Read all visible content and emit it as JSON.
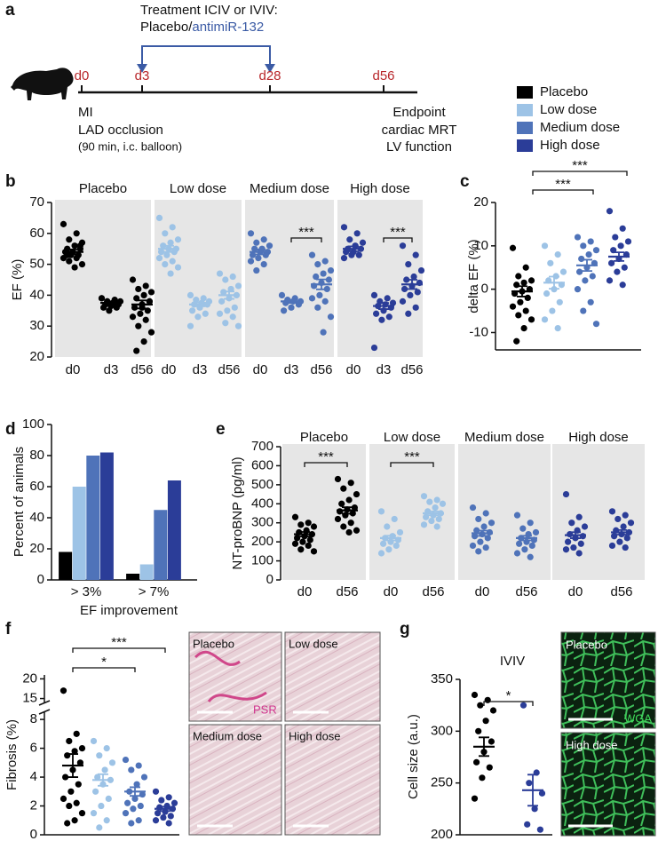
{
  "panel_labels": [
    "a",
    "b",
    "c",
    "d",
    "e",
    "f",
    "g"
  ],
  "timeline": {
    "treatment": "Treatment ICIV or IVIV:",
    "drug_a": "Placebo/",
    "drug_b": "antimiR-132",
    "days": [
      "d0",
      "d3",
      "d28",
      "d56"
    ],
    "start_notes": [
      "MI",
      "LAD occlusion",
      "(90 min, i.c. balloon)"
    ],
    "end_notes": [
      "Endpoint",
      "cardiac MRT",
      "LV function"
    ]
  },
  "legend": [
    {
      "name": "Placebo",
      "color": "#000000"
    },
    {
      "name": "Low dose",
      "color": "#9dc3e6"
    },
    {
      "name": "Medium dose",
      "color": "#4f73b9"
    },
    {
      "name": "High dose",
      "color": "#2b3d98"
    }
  ],
  "images": {
    "fibrosis": [
      "Placebo",
      "Low dose",
      "Medium dose",
      "High dose"
    ],
    "fibrosis_stain": "PSR",
    "cells": [
      "Placebo",
      "High dose"
    ],
    "cells_stain": "WGA"
  },
  "chart_data": [
    {
      "type": "strip",
      "ylabel": "EF (%)",
      "ylim": [
        20,
        70
      ],
      "yticks": [
        20,
        30,
        40,
        50,
        60,
        70
      ],
      "groups": [
        {
          "name": "Placebo",
          "color": "#000000",
          "categories": [
            "d0",
            "d3",
            "d56"
          ],
          "points": [
            [
              63,
              60,
              58,
              57,
              56,
              55,
              55,
              54,
              54,
              53,
              53,
              52,
              52,
              51,
              50,
              49,
              53,
              56
            ],
            [
              39,
              38.5,
              38,
              38,
              37.5,
              37,
              37,
              36.5,
              36,
              36,
              35,
              39,
              37.5,
              38
            ],
            [
              45,
              43,
              42,
              41,
              40,
              39,
              38,
              37,
              36,
              35,
              34,
              33,
              32,
              30,
              28,
              25,
              22,
              38,
              36
            ]
          ],
          "means": [
            54,
            37.5,
            37
          ],
          "sem": [
            0.8,
            0.3,
            1.3
          ]
        },
        {
          "name": "Low dose",
          "color": "#9dc3e6",
          "categories": [
            "d0",
            "d3",
            "d56"
          ],
          "points": [
            [
              65,
              62,
              60,
              58,
              57,
              56,
              55,
              55,
              54,
              54,
              53,
              52,
              51,
              50,
              49,
              47
            ],
            [
              40,
              39,
              38.5,
              38,
              37.5,
              37,
              37,
              36,
              35,
              34,
              33,
              30
            ],
            [
              47,
              46,
              45,
              43,
              42,
              41,
              40,
              39,
              38,
              36,
              35,
              34,
              33,
              31,
              30
            ]
          ],
          "means": [
            55,
            37,
            40
          ],
          "sem": [
            1,
            0.6,
            1.2
          ]
        },
        {
          "name": "Medium dose",
          "color": "#4f73b9",
          "categories": [
            "d0",
            "d3",
            "d56"
          ],
          "points": [
            [
              60,
              58,
              57,
              56,
              55,
              55,
              54,
              54,
              53,
              53,
              52,
              51,
              50,
              48
            ],
            [
              40,
              39,
              38.5,
              38,
              38,
              37.5,
              37,
              36,
              35
            ],
            [
              53,
              51,
              50,
              48,
              47,
              46,
              45,
              44,
              43,
              42,
              40,
              39,
              38,
              36,
              33,
              28
            ]
          ],
          "means": [
            54,
            38,
            43.5
          ],
          "sem": [
            0.8,
            0.5,
            1.6
          ]
        },
        {
          "name": "High dose",
          "color": "#2b3d98",
          "categories": [
            "d0",
            "d3",
            "d56"
          ],
          "points": [
            [
              62,
              60,
              58,
              57,
              56,
              55,
              55,
              54,
              54,
              53,
              53,
              52
            ],
            [
              40,
              39,
              38,
              37.5,
              37,
              36.5,
              36,
              35,
              34,
              33,
              32,
              23
            ],
            [
              56,
              53,
              50,
              48,
              46,
              45,
              44,
              43,
              42,
              41,
              40,
              38,
              36,
              34
            ]
          ],
          "means": [
            55,
            36.5,
            43.5
          ],
          "sem": [
            0.8,
            1,
            1.5
          ]
        }
      ],
      "annotations": [
        {
          "text": "***"
        },
        {
          "text": "***"
        }
      ]
    },
    {
      "type": "strip",
      "ylabel": "delta EF (%)",
      "ylim": [
        -14,
        20
      ],
      "yticks": [
        -10,
        0,
        10,
        20
      ],
      "groups": [
        {
          "color": "#000000",
          "points": [
            [
              9.5,
              5,
              3,
              2,
              1.5,
              1,
              0,
              -0.5,
              -1,
              -2,
              -3,
              -4,
              -5,
              -6,
              -7,
              -9,
              -12
            ]
          ],
          "means": [
            -0.5
          ],
          "sem": [
            1.2
          ]
        },
        {
          "color": "#9dc3e6",
          "points": [
            [
              10,
              8,
              6,
              4,
              3,
              2,
              1,
              0,
              -1,
              -3,
              -5,
              -7,
              -9
            ]
          ],
          "means": [
            1.5
          ],
          "sem": [
            1.4
          ]
        },
        {
          "color": "#4f73b9",
          "points": [
            [
              12,
              11,
              10,
              9,
              8,
              7,
              6,
              5,
              4,
              3,
              2,
              0,
              -3,
              -5,
              -8
            ]
          ],
          "means": [
            5.5
          ],
          "sem": [
            1.3
          ]
        },
        {
          "color": "#2b3d98",
          "points": [
            [
              18,
              14,
              12,
              11,
              10,
              9,
              8,
              7,
              6,
              5,
              4,
              2,
              1
            ]
          ],
          "means": [
            7.5
          ],
          "sem": [
            1
          ]
        }
      ],
      "annotations": [
        {
          "text": "***"
        },
        {
          "text": "***"
        }
      ]
    },
    {
      "type": "bar",
      "ylabel": "Percent of animals",
      "xlabel": "EF improvement",
      "categories": [
        "> 3%",
        "> 7%"
      ],
      "ylim": [
        0,
        100
      ],
      "yticks": [
        0,
        20,
        40,
        60,
        80,
        100
      ],
      "series": [
        {
          "color": "#000000",
          "values": [
            18,
            4
          ]
        },
        {
          "color": "#9dc3e6",
          "values": [
            60,
            10
          ]
        },
        {
          "color": "#4f73b9",
          "values": [
            80,
            45
          ]
        },
        {
          "color": "#2b3d98",
          "values": [
            82,
            64
          ]
        }
      ]
    },
    {
      "type": "strip",
      "ylabel": "NT-proBNP (pg/ml)",
      "ylim": [
        0,
        700
      ],
      "yticks": [
        0,
        100,
        200,
        300,
        400,
        500,
        600,
        700
      ],
      "groups": [
        {
          "name": "Placebo",
          "color": "#000000",
          "categories": [
            "d0",
            "d56"
          ],
          "points": [
            [
              330,
              300,
              290,
              280,
              260,
              250,
              240,
              230,
              220,
              210,
              200,
              190,
              180,
              160,
              150
            ],
            [
              530,
              510,
              480,
              450,
              420,
              400,
              380,
              370,
              360,
              350,
              340,
              320,
              300,
              280,
              260,
              250
            ]
          ],
          "means": [
            240,
            365
          ],
          "sem": [
            12,
            17
          ]
        },
        {
          "name": "Low dose",
          "color": "#9dc3e6",
          "categories": [
            "d0",
            "d56"
          ],
          "points": [
            [
              360,
              320,
              280,
              250,
              230,
              220,
              210,
              200,
              190,
              180,
              160,
              140
            ],
            [
              440,
              420,
              410,
              400,
              380,
              360,
              350,
              340,
              330,
              320,
              310,
              290,
              280
            ]
          ],
          "means": [
            220,
            350
          ],
          "sem": [
            12,
            10
          ]
        },
        {
          "name": "Medium dose",
          "color": "#4f73b9",
          "categories": [
            "d0",
            "d56"
          ],
          "points": [
            [
              380,
              350,
              320,
              300,
              280,
              260,
              250,
              240,
              230,
              220,
              200,
              180,
              170,
              150
            ],
            [
              340,
              300,
              270,
              250,
              240,
              220,
              210,
              200,
              190,
              180,
              160,
              140,
              120
            ]
          ],
          "means": [
            245,
            220
          ],
          "sem": [
            14,
            12
          ]
        },
        {
          "name": "High dose",
          "color": "#2b3d98",
          "categories": [
            "d0",
            "d56"
          ],
          "points": [
            [
              450,
              330,
              300,
              280,
              260,
              240,
              230,
              220,
              200,
              190,
              170,
              160,
              140
            ],
            [
              360,
              340,
              320,
              300,
              280,
              260,
              250,
              240,
              230,
              220,
              200,
              180,
              170
            ]
          ],
          "means": [
            235,
            250
          ],
          "sem": [
            16,
            12
          ]
        }
      ],
      "annotations": [
        {
          "text": "***"
        },
        {
          "text": "***"
        }
      ]
    },
    {
      "type": "strip",
      "ylabel": "Fibrosis (%)",
      "ylim": [
        0,
        21
      ],
      "ybreak": [
        8.5,
        14
      ],
      "yticks": [
        0,
        2,
        4,
        6,
        8,
        15,
        20
      ],
      "groups": [
        {
          "color": "#000000",
          "points": [
            [
              17,
              7,
              6.5,
              6,
              5.8,
              5.5,
              5,
              4.5,
              4,
              3.5,
              3,
              2.5,
              2.2,
              2,
              1.5,
              1,
              0.8
            ]
          ],
          "means": [
            4.8
          ],
          "sem": [
            0.8
          ]
        },
        {
          "color": "#9dc3e6",
          "points": [
            [
              6.5,
              6,
              5.5,
              5,
              4.5,
              4,
              3.8,
              3.5,
              3,
              2.5,
              2,
              1.5,
              1,
              0.5
            ]
          ],
          "means": [
            3.8
          ],
          "sem": [
            0.4
          ]
        },
        {
          "color": "#4f73b9",
          "points": [
            [
              5.2,
              4.8,
              4.5,
              4,
              3.5,
              3,
              2.8,
              2.5,
              2.2,
              2,
              1.8,
              1.5,
              1,
              0.8
            ]
          ],
          "means": [
            3
          ],
          "sem": [
            0.3
          ]
        },
        {
          "color": "#2b3d98",
          "points": [
            [
              3,
              2.6,
              2.4,
              2.2,
              2,
              1.9,
              1.8,
              1.6,
              1.5,
              1.3,
              1.2,
              1,
              0.8
            ]
          ],
          "means": [
            1.8
          ],
          "sem": [
            0.15
          ]
        }
      ],
      "annotations": [
        {
          "text": "***"
        },
        {
          "text": "*"
        }
      ]
    },
    {
      "type": "strip",
      "title": "IVIV",
      "ylabel": "Cell size (a.u.)",
      "ylim": [
        200,
        350
      ],
      "yticks": [
        200,
        250,
        300,
        350
      ],
      "groups": [
        {
          "color": "#000000",
          "points": [
            [
              335,
              330,
              325,
              320,
              310,
              300,
              290,
              280,
              270,
              265,
              255,
              235
            ]
          ],
          "means": [
            285
          ],
          "sem": [
            9
          ]
        },
        {
          "color": "#2b3d98",
          "points": [
            [
              325,
              260,
              250,
              240,
              225,
              210,
              205
            ]
          ],
          "means": [
            243
          ],
          "sem": [
            15
          ]
        }
      ],
      "annotations": [
        {
          "text": "*"
        }
      ]
    }
  ]
}
